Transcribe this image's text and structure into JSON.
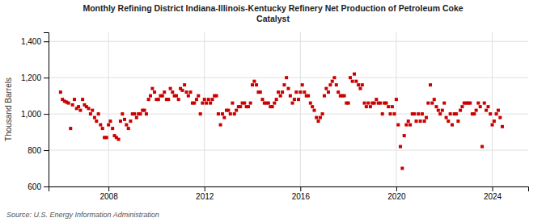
{
  "chart_data": {
    "type": "scatter",
    "title": "Monthly Refining District Indiana-Illinois-Kentucky Refinery Net Production of Petroleum Coke\nCatalyst",
    "ylabel": "Thousand Barrels",
    "source": "Source: U.S. Energy Information Administration",
    "color": "#cc0000",
    "marker": "square",
    "grid": true,
    "xlim": [
      2005.5,
      2025.5
    ],
    "xticks": [
      2008,
      2012,
      2016,
      2020,
      2024
    ],
    "ylim": [
      600,
      1450
    ],
    "yticks": [
      600,
      800,
      {
        "value": 1000,
        "label": "1,000"
      },
      {
        "value": 1200,
        "label": "1,200"
      },
      {
        "value": 1400,
        "label": "1,400"
      }
    ],
    "x": [
      2006.0,
      2006.08,
      2006.17,
      2006.25,
      2006.33,
      2006.42,
      2006.5,
      2006.58,
      2006.67,
      2006.75,
      2006.83,
      2006.92,
      2007.0,
      2007.08,
      2007.17,
      2007.25,
      2007.33,
      2007.42,
      2007.5,
      2007.58,
      2007.67,
      2007.75,
      2007.83,
      2007.92,
      2008.0,
      2008.08,
      2008.17,
      2008.25,
      2008.33,
      2008.42,
      2008.5,
      2008.58,
      2008.67,
      2008.75,
      2008.83,
      2008.92,
      2009.0,
      2009.08,
      2009.17,
      2009.25,
      2009.33,
      2009.42,
      2009.5,
      2009.58,
      2009.67,
      2009.75,
      2009.83,
      2009.92,
      2010.0,
      2010.08,
      2010.17,
      2010.25,
      2010.33,
      2010.42,
      2010.5,
      2010.58,
      2010.67,
      2010.75,
      2010.83,
      2010.92,
      2011.0,
      2011.08,
      2011.17,
      2011.25,
      2011.33,
      2011.42,
      2011.5,
      2011.58,
      2011.67,
      2011.75,
      2011.83,
      2011.92,
      2012.0,
      2012.08,
      2012.17,
      2012.25,
      2012.33,
      2012.42,
      2012.5,
      2012.58,
      2012.67,
      2012.75,
      2012.83,
      2012.92,
      2013.0,
      2013.08,
      2013.17,
      2013.25,
      2013.33,
      2013.42,
      2013.5,
      2013.58,
      2013.67,
      2013.75,
      2013.83,
      2013.92,
      2014.0,
      2014.08,
      2014.17,
      2014.25,
      2014.33,
      2014.42,
      2014.5,
      2014.58,
      2014.67,
      2014.75,
      2014.83,
      2014.92,
      2015.0,
      2015.08,
      2015.17,
      2015.25,
      2015.33,
      2015.42,
      2015.5,
      2015.58,
      2015.67,
      2015.75,
      2015.83,
      2015.92,
      2016.0,
      2016.08,
      2016.17,
      2016.25,
      2016.33,
      2016.42,
      2016.5,
      2016.58,
      2016.67,
      2016.75,
      2016.83,
      2016.92,
      2017.0,
      2017.08,
      2017.17,
      2017.25,
      2017.33,
      2017.42,
      2017.5,
      2017.58,
      2017.67,
      2017.75,
      2017.83,
      2017.92,
      2018.0,
      2018.08,
      2018.17,
      2018.25,
      2018.33,
      2018.42,
      2018.5,
      2018.58,
      2018.67,
      2018.75,
      2018.83,
      2018.92,
      2019.0,
      2019.08,
      2019.17,
      2019.25,
      2019.33,
      2019.42,
      2019.5,
      2019.58,
      2019.67,
      2019.75,
      2019.83,
      2019.92,
      2020.0,
      2020.08,
      2020.17,
      2020.25,
      2020.33,
      2020.42,
      2020.5,
      2020.58,
      2020.67,
      2020.75,
      2020.83,
      2020.92,
      2021.0,
      2021.08,
      2021.17,
      2021.25,
      2021.33,
      2021.42,
      2021.5,
      2021.58,
      2021.67,
      2021.75,
      2021.83,
      2021.92,
      2022.0,
      2022.08,
      2022.17,
      2022.25,
      2022.33,
      2022.42,
      2022.5,
      2022.58,
      2022.67,
      2022.75,
      2022.83,
      2022.92,
      2023.0,
      2023.08,
      2023.17,
      2023.25,
      2023.33,
      2023.42,
      2023.5,
      2023.58,
      2023.67,
      2023.75,
      2023.83,
      2023.92,
      2024.0,
      2024.08,
      2024.17,
      2024.25,
      2024.33,
      2024.42
    ],
    "values": [
      1120,
      1080,
      1070,
      1065,
      1060,
      920,
      1050,
      1080,
      1030,
      1040,
      1020,
      1080,
      1050,
      1040,
      1030,
      1000,
      1020,
      980,
      960,
      1000,
      940,
      920,
      870,
      870,
      940,
      960,
      920,
      880,
      870,
      860,
      960,
      1000,
      970,
      940,
      920,
      960,
      1000,
      1000,
      980,
      1000,
      1000,
      1020,
      1020,
      1000,
      1080,
      1100,
      1140,
      1120,
      1080,
      1080,
      1100,
      1100,
      1120,
      1080,
      1080,
      1140,
      1120,
      1100,
      1100,
      1080,
      1140,
      1130,
      1160,
      1120,
      1100,
      1120,
      1060,
      1060,
      1080,
      1100,
      1000,
      1060,
      1080,
      1060,
      1080,
      1060,
      1080,
      1100,
      1100,
      1000,
      940,
      1000,
      980,
      1020,
      1020,
      1000,
      1060,
      1000,
      1020,
      1040,
      1040,
      1060,
      1060,
      1040,
      1040,
      1060,
      1160,
      1180,
      1160,
      1120,
      1120,
      1080,
      1060,
      1060,
      1060,
      1040,
      1040,
      1060,
      1080,
      1120,
      1100,
      1120,
      1160,
      1200,
      1140,
      1100,
      1060,
      1080,
      1120,
      1080,
      1120,
      1160,
      1120,
      1100,
      1100,
      1060,
      1040,
      1020,
      980,
      960,
      980,
      1000,
      1100,
      1140,
      1120,
      1160,
      1180,
      1200,
      1160,
      1120,
      1100,
      1100,
      1100,
      1060,
      1060,
      1200,
      1180,
      1220,
      1180,
      1160,
      1140,
      1160,
      1060,
      1040,
      1060,
      1040,
      1060,
      1060,
      1080,
      1060,
      1060,
      1000,
      1060,
      1060,
      1040,
      1000,
      1040,
      1000,
      1080,
      940,
      820,
      700,
      880,
      940,
      960,
      940,
      1000,
      1000,
      960,
      1000,
      960,
      1000,
      960,
      980,
      1060,
      1160,
      1060,
      1080,
      1040,
      1020,
      1000,
      1020,
      1060,
      980,
      960,
      1000,
      940,
      1000,
      1000,
      960,
      1020,
      1040,
      1060,
      1060,
      1060,
      1060,
      1000,
      1000,
      1020,
      1060,
      1040,
      820,
      1060,
      1020,
      1040,
      1000,
      940,
      960,
      1000,
      1020,
      980,
      930
    ]
  }
}
